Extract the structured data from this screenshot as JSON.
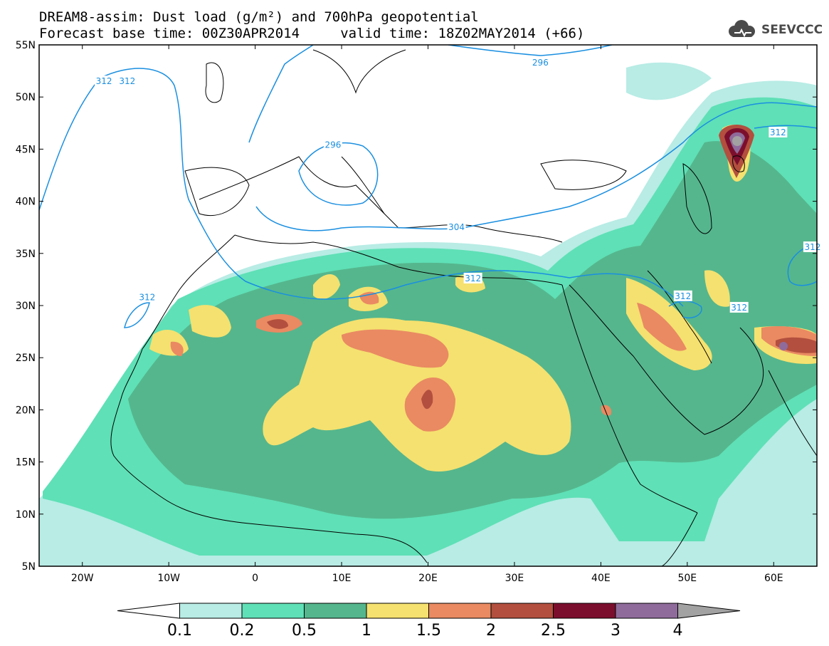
{
  "title": {
    "line1": "DREAM8-assim: Dust load (g/m²) and 700hPa geopotential",
    "line2": "Forecast base time: 00Z30APR2014     valid time: 18Z02MAY2014 (+66)"
  },
  "logo": {
    "text": "SEEVCCC",
    "icon": "cloud-icon"
  },
  "map": {
    "lon_range": [
      -25,
      65
    ],
    "lat_range": [
      5,
      55
    ],
    "lon_ticks": [
      {
        "value": -20,
        "label": "20W"
      },
      {
        "value": -10,
        "label": "10W"
      },
      {
        "value": 0,
        "label": "0"
      },
      {
        "value": 10,
        "label": "10E"
      },
      {
        "value": 20,
        "label": "20E"
      },
      {
        "value": 30,
        "label": "30E"
      },
      {
        "value": 40,
        "label": "40E"
      },
      {
        "value": 50,
        "label": "50E"
      },
      {
        "value": 60,
        "label": "60E"
      }
    ],
    "lat_ticks": [
      {
        "value": 55,
        "label": "55N"
      },
      {
        "value": 50,
        "label": "50N"
      },
      {
        "value": 45,
        "label": "45N"
      },
      {
        "value": 40,
        "label": "40N"
      },
      {
        "value": 35,
        "label": "35N"
      },
      {
        "value": 30,
        "label": "30N"
      },
      {
        "value": 25,
        "label": "25N"
      },
      {
        "value": 20,
        "label": "20N"
      },
      {
        "value": 15,
        "label": "15N"
      },
      {
        "value": 10,
        "label": "10N"
      },
      {
        "value": 5,
        "label": "5N"
      }
    ],
    "contour_color": "#1a8fe0",
    "contour_labels": [
      {
        "text": "312",
        "lon": -17.5,
        "lat": 51.5
      },
      {
        "text": "312",
        "lon": -14.8,
        "lat": 51.5
      },
      {
        "text": "296",
        "lon": 33.0,
        "lat": 53.3
      },
      {
        "text": "296",
        "lon": 9.0,
        "lat": 45.4
      },
      {
        "text": "312",
        "lon": 56.0,
        "lat": 29.8
      },
      {
        "text": "312",
        "lon": -12.5,
        "lat": 30.8
      },
      {
        "text": "312",
        "lon": 25.2,
        "lat": 32.6
      },
      {
        "text": "312",
        "lon": 49.5,
        "lat": 30.9
      },
      {
        "text": "312",
        "lon": 60.5,
        "lat": 46.6
      },
      {
        "text": "312",
        "lon": 64.5,
        "lat": 35.6
      },
      {
        "text": "304",
        "lon": 23.3,
        "lat": 37.5
      }
    ],
    "dust_colors": [
      "#b8ece5",
      "#5fe0b6",
      "#55b68d",
      "#f5e16f",
      "#e98a62",
      "#b24f3e",
      "#7c0e2d",
      "#8f6b9b",
      "#a2a2a2"
    ]
  },
  "colorbar": {
    "colors": [
      "#ffffff",
      "#b8ece5",
      "#5fe0b6",
      "#55b68d",
      "#f5e16f",
      "#e98a62",
      "#b24f3e",
      "#7c0e2d",
      "#8f6b9b",
      "#a2a2a2"
    ],
    "labels": [
      "0.1",
      "0.2",
      "0.5",
      "1",
      "1.5",
      "2",
      "2.5",
      "3",
      "4"
    ]
  }
}
